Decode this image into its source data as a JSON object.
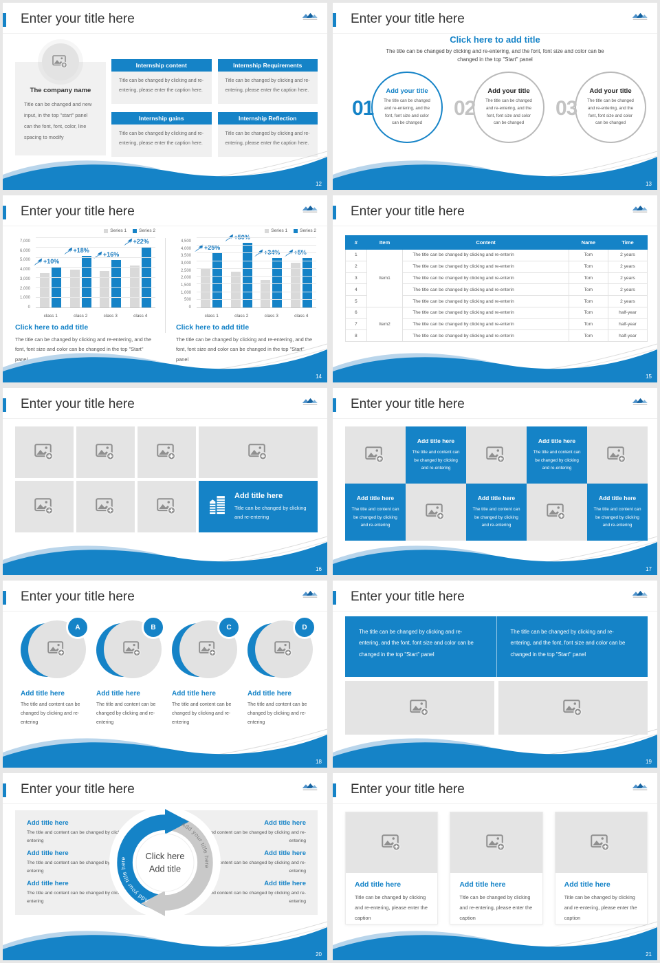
{
  "common": {
    "title": "Enter your title here"
  },
  "colors": {
    "accent": "#1583c7",
    "bar_gray": "#d9d9d9",
    "panel_gray": "#efefef",
    "wave_light_blue": "#b9d5eb"
  },
  "slides": {
    "s12": {
      "page": "12",
      "company_name": "The company name",
      "company_caption": "Title can be changed and new input, in the top \"start\" panel can the font, font, color, line spacing to modify",
      "boxes": [
        {
          "header": "Internship content",
          "body": "Title can be changed by clicking and re-entering, please enter the caption here."
        },
        {
          "header": "Internship Requirements",
          "body": "Title can be changed by clicking and re-entering, please enter the caption here."
        },
        {
          "header": "Internship gains",
          "body": "Title can be changed by clicking and re-entering, please enter the caption here."
        },
        {
          "header": "Internship Reflection",
          "body": "Title can be changed by clicking and re-entering, please enter the caption here."
        }
      ]
    },
    "s13": {
      "page": "13",
      "heading": "Click here to add title",
      "subheading": "The title can be changed by clicking and re-entering, and the font, font size and color can be changed in the top \"Start\" panel",
      "items": [
        {
          "num": "01",
          "title": "Add your title",
          "body": "The title can be changed and re-entering, and the font, font size and color can be changed"
        },
        {
          "num": "02",
          "title": "Add your title",
          "body": "The title can be changed and re-entering, and the font, font size and color can be changed"
        },
        {
          "num": "03",
          "title": "Add your title",
          "body": "The title can be changed and re-entering, and the font, font size and color can be changed"
        }
      ]
    },
    "s14": {
      "page": "14"
    },
    "s15": {
      "page": "15",
      "headers": [
        "#",
        "Item",
        "Content",
        "Name",
        "Time"
      ],
      "item1": "Item1",
      "item2": "Item2",
      "rows": [
        {
          "n": "1",
          "content": "The title can be changed by clicking and re-enterin",
          "name": "Tom",
          "time": "2 years"
        },
        {
          "n": "2",
          "content": "The title can be changed by clicking and re-enterin",
          "name": "Tom",
          "time": "2 years"
        },
        {
          "n": "3",
          "content": "The title can be changed by clicking and re-enterin",
          "name": "Tom",
          "time": "2 years"
        },
        {
          "n": "4",
          "content": "The title can be changed by clicking and re-enterin",
          "name": "Tom",
          "time": "2 years"
        },
        {
          "n": "5",
          "content": "The title can be changed by clicking and re-enterin",
          "name": "Tom",
          "time": "2 years"
        },
        {
          "n": "6",
          "content": "The title can be changed by clicking and re-enterin",
          "name": "Tom",
          "time": "half-year"
        },
        {
          "n": "7",
          "content": "The title can be changed by clicking and re-enterin",
          "name": "Tom",
          "time": "half-year"
        },
        {
          "n": "8",
          "content": "The title can be changed by clicking and re-enterin",
          "name": "Tom",
          "time": "half-year"
        }
      ]
    },
    "s16": {
      "page": "16",
      "feature_title": "Add title here",
      "feature_body": "Title can be changed by clicking and re-entering"
    },
    "s17": {
      "page": "17",
      "cell_title": "Add title here",
      "cell_body": "The title and content can be changed by clicking and re-entering"
    },
    "s18": {
      "page": "18",
      "letters": [
        "A",
        "B",
        "C",
        "D"
      ],
      "item_title": "Add title here",
      "item_body": "The title and content can be changed by clicking and re-entering"
    },
    "s19": {
      "page": "19",
      "banner_text": "The title can be changed by clicking and re-entering, and the font, font size and color can be changed in the top \"Start\" panel"
    },
    "s20": {
      "page": "20",
      "item_title": "Add title here",
      "item_body": "The title and content can be changed by clicking and re-entering",
      "arrow_label_left": "Add your title here",
      "arrow_label_right": "Add your title here",
      "center_line1": "Click here",
      "center_line2": "Add title"
    },
    "s21": {
      "page": "21",
      "card_title": "Add title here",
      "card_body": "Title can be changed by clicking and re-entering, please enter the caption"
    }
  },
  "chart_data": [
    {
      "type": "bar",
      "title": "Click here to add title",
      "caption": "The title can be changed by clicking and re-entering, and the font, font size and color can be changed in the top \"Start\" panel",
      "categories": [
        "class 1",
        "class 2",
        "class 3",
        "class 4"
      ],
      "series": [
        {
          "name": "Series 1",
          "color": "#d9d9d9",
          "values": [
            3500,
            3800,
            3700,
            4200
          ]
        },
        {
          "name": "Series 2",
          "color": "#1583c7",
          "values": [
            4100,
            5200,
            4800,
            6100
          ]
        }
      ],
      "growth_labels": [
        "+10%",
        "+18%",
        "+16%",
        "+22%"
      ],
      "ylim": [
        0,
        7000
      ],
      "ytick_step": 1000,
      "grid": true,
      "legend_position": "top-right"
    },
    {
      "type": "bar",
      "title": "Click here to add title",
      "caption": "The title can be changed by clicking and re-entering, and the font, font size and color can be changed in the top \"Start\" panel",
      "categories": [
        "class 1",
        "class 2",
        "class 3",
        "class 4"
      ],
      "series": [
        {
          "name": "Series 1",
          "color": "#d9d9d9",
          "values": [
            2500,
            2300,
            1800,
            2900
          ]
        },
        {
          "name": "Series 2",
          "color": "#1583c7",
          "values": [
            3500,
            4200,
            3200,
            3200
          ]
        }
      ],
      "growth_labels": [
        "+25%",
        "+50%",
        "+34%",
        "+5%"
      ],
      "ylim": [
        0,
        4500
      ],
      "ytick_step": 500,
      "grid": true,
      "legend_position": "top-right"
    }
  ]
}
